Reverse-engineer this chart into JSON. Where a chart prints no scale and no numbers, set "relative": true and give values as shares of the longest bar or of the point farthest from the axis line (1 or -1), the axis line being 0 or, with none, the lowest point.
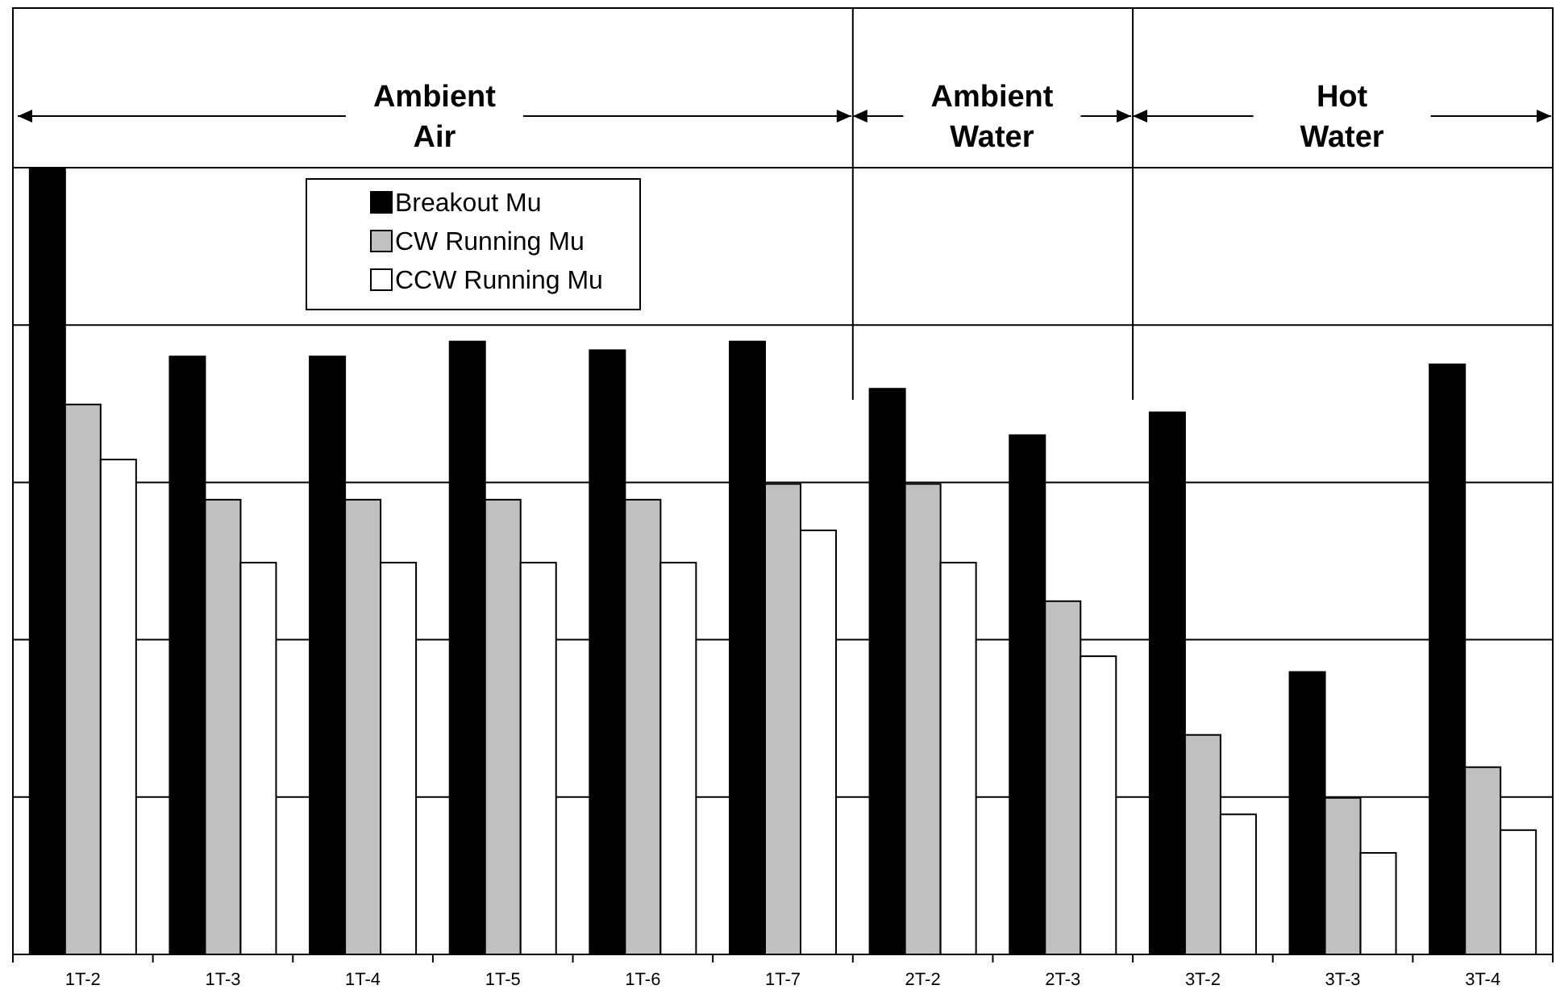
{
  "chart_data": {
    "type": "bar",
    "relative": true,
    "categories": [
      "1T-2",
      "1T-3",
      "1T-4",
      "1T-5",
      "1T-6",
      "1T-7",
      "2T-2",
      "2T-3",
      "3T-2",
      "3T-3",
      "3T-4"
    ],
    "series": [
      {
        "name": "Breakout Mu",
        "color": "#000000",
        "values": [
          1.0,
          0.76,
          0.76,
          0.779,
          0.768,
          0.779,
          0.719,
          0.66,
          0.689,
          0.359,
          0.75
        ]
      },
      {
        "name": "CW Running Mu",
        "color": "#c0c0c0",
        "values": [
          0.699,
          0.578,
          0.578,
          0.578,
          0.578,
          0.598,
          0.598,
          0.449,
          0.279,
          0.199,
          0.238
        ]
      },
      {
        "name": "CCW Running Mu",
        "color": "#ffffff",
        "values": [
          0.629,
          0.498,
          0.498,
          0.498,
          0.498,
          0.539,
          0.498,
          0.379,
          0.178,
          0.129,
          0.158
        ]
      }
    ],
    "annotations": [
      "Ambient Air",
      "Ambient Water",
      "Hot Water"
    ],
    "grid": "y",
    "legend": "top left"
  }
}
